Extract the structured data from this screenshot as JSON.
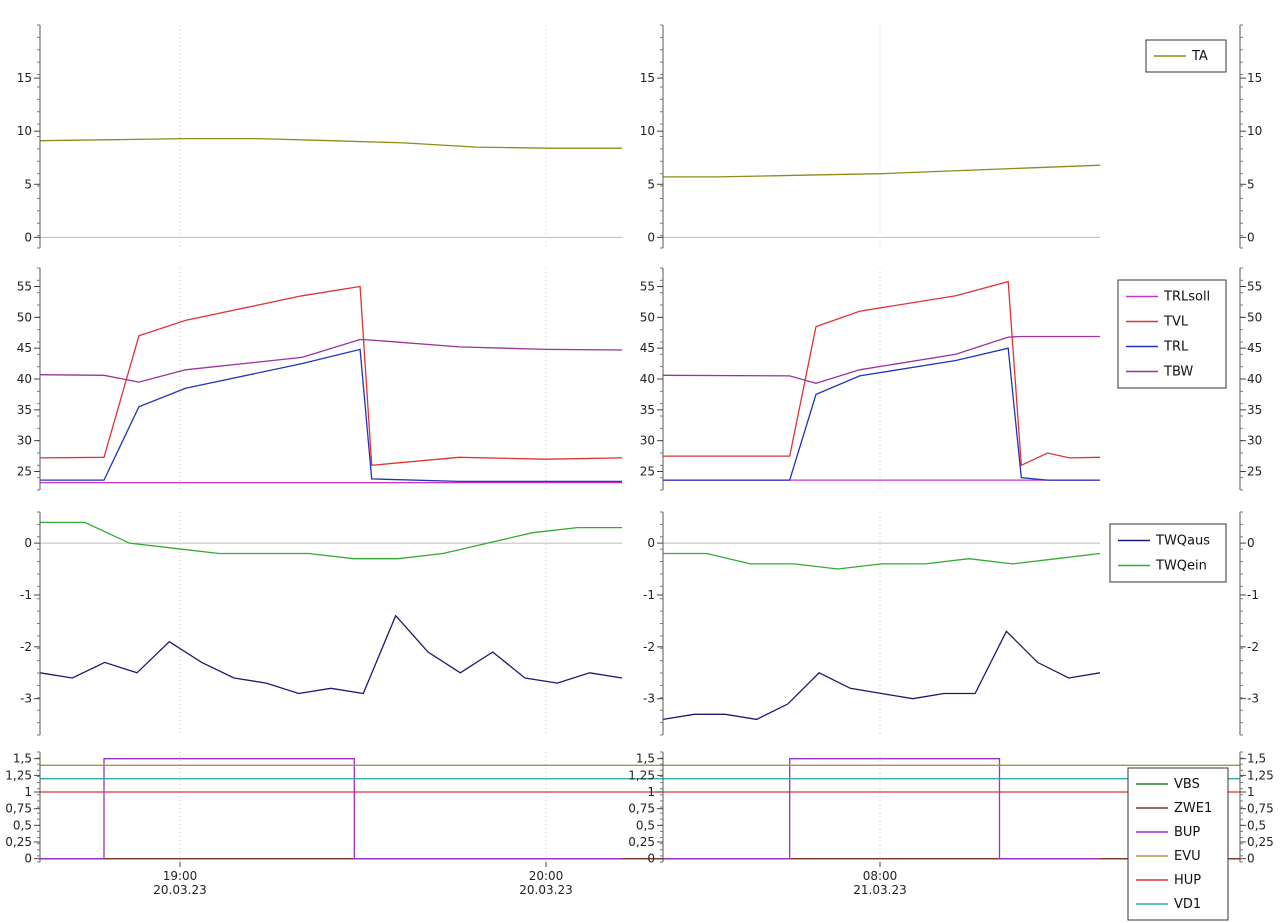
{
  "chart_data": [
    {
      "name": "ta-panel",
      "type": "line",
      "ylim": [
        -1,
        20
      ],
      "yticks": [
        "0",
        "5",
        "10",
        "15"
      ],
      "ytick_values": [
        0,
        5,
        10,
        15
      ],
      "grid": true,
      "legend_position": "top-right",
      "series": [
        {
          "name": "TA",
          "color": "#8c8c1a",
          "x_left": [
            "18:25",
            "18:40",
            "18:55",
            "19:10",
            "19:25",
            "19:40",
            "19:55",
            "20:10",
            "20:15"
          ],
          "y_left": [
            9.1,
            9.2,
            9.3,
            9.3,
            9.1,
            8.9,
            8.5,
            8.4,
            8.4
          ],
          "x_right": [
            "07:10",
            "07:25",
            "07:40",
            "07:55",
            "08:10",
            "08:25",
            "08:40",
            "08:55",
            "09:05"
          ],
          "y_right": [
            5.7,
            5.7,
            5.8,
            5.9,
            6.0,
            6.2,
            6.4,
            6.6,
            6.8
          ]
        }
      ]
    },
    {
      "name": "temperature-panel",
      "type": "line",
      "ylim": [
        22,
        58
      ],
      "yticks": [
        "25",
        "30",
        "35",
        "40",
        "45",
        "50",
        "55"
      ],
      "ytick_values": [
        25,
        30,
        35,
        40,
        45,
        50,
        55
      ],
      "grid": true,
      "legend_position": "top-right",
      "series": [
        {
          "name": "TRLsoll",
          "color": "#cc33cc",
          "y_left": [
            23.2,
            23.2,
            23.2,
            23.2,
            23.2,
            23.2
          ],
          "y_right": [
            23.6,
            23.6,
            23.6,
            23.6,
            23.6,
            23.6
          ]
        },
        {
          "name": "TVL",
          "color": "#dd3333",
          "y_left": [
            27.2,
            27.3,
            47.0,
            49.5,
            53.5,
            55.0,
            26.0,
            27.3,
            27.0,
            27.2
          ],
          "y_right": [
            27.5,
            27.5,
            48.5,
            51.0,
            53.5,
            55.8,
            26.0,
            28.0,
            27.2,
            27.3
          ]
        },
        {
          "name": "TRL",
          "color": "#2233bb",
          "y_left": [
            23.6,
            23.6,
            35.5,
            38.5,
            42.5,
            44.8,
            23.8,
            23.4,
            23.4,
            23.4
          ],
          "y_right": [
            23.6,
            23.6,
            37.5,
            40.5,
            43.0,
            45.0,
            24.0,
            23.6,
            23.6,
            23.6
          ]
        },
        {
          "name": "TBW",
          "color": "#993399",
          "y_left": [
            40.7,
            40.6,
            39.5,
            41.5,
            43.5,
            46.4,
            46.3,
            45.2,
            44.8,
            44.7
          ],
          "y_right": [
            40.6,
            40.5,
            39.3,
            41.5,
            44.0,
            46.8,
            46.9,
            46.9,
            46.9,
            46.9
          ]
        }
      ]
    },
    {
      "name": "twq-panel",
      "type": "line",
      "ylim": [
        -3.7,
        0.6
      ],
      "yticks": [
        "-3",
        "-2",
        "-1",
        "0"
      ],
      "ytick_values": [
        -3,
        -2,
        -1,
        0
      ],
      "grid": true,
      "legend_position": "top-right",
      "series": [
        {
          "name": "TWQaus",
          "color": "#1a1a70",
          "y_left": [
            -2.5,
            -2.6,
            -2.3,
            -2.5,
            -1.9,
            -2.3,
            -2.6,
            -2.7,
            -2.9,
            -2.8,
            -2.9,
            -1.4,
            -2.1,
            -2.5,
            -2.1,
            -2.6,
            -2.7,
            -2.5,
            -2.6
          ],
          "y_right": [
            -3.4,
            -3.3,
            -3.3,
            -3.4,
            -3.1,
            -2.5,
            -2.8,
            -2.9,
            -3.0,
            -2.9,
            -2.9,
            -1.7,
            -2.3,
            -2.6,
            -2.5
          ]
        },
        {
          "name": "TWQein",
          "color": "#33aa33",
          "y_left": [
            0.4,
            0.4,
            0.0,
            -0.1,
            -0.2,
            -0.2,
            -0.2,
            -0.3,
            -0.3,
            -0.2,
            0.0,
            0.2,
            0.3,
            0.3
          ],
          "y_right": [
            -0.2,
            -0.2,
            -0.4,
            -0.4,
            -0.5,
            -0.4,
            -0.4,
            -0.3,
            -0.4,
            -0.3,
            -0.2
          ]
        }
      ]
    },
    {
      "name": "status-panel",
      "type": "line",
      "ylim": [
        -0.05,
        1.6
      ],
      "yticks": [
        "0",
        "0,25",
        "0,5",
        "0,75",
        "1",
        "1,25",
        "1,5"
      ],
      "ytick_values": [
        0,
        0.25,
        0.5,
        0.75,
        1,
        1.25,
        1.5
      ],
      "grid": false,
      "legend_position": "bottom-right",
      "xticks_left": [
        {
          "time": "19:00",
          "date": "20.03.23"
        },
        {
          "time": "20:00",
          "date": "20.03.23"
        }
      ],
      "xticks_right": [
        {
          "time": "08:00",
          "date": "21.03.23"
        }
      ],
      "series": [
        {
          "name": "VBS",
          "color": "#2a7a2a",
          "y": [
            0
          ]
        },
        {
          "name": "ZWE1",
          "color": "#7a3a2a",
          "y": [
            0
          ]
        },
        {
          "name": "BUP",
          "color": "#9933cc",
          "y_left": [
            0,
            0,
            1.5,
            1.5,
            0,
            0
          ],
          "y_right": [
            0,
            0,
            1.5,
            1.5,
            0,
            0
          ]
        },
        {
          "name": "EVU",
          "color": "#a09a40",
          "y": [
            1.4
          ]
        },
        {
          "name": "HUP",
          "color": "#dd3333",
          "y": [
            1.0
          ]
        },
        {
          "name": "VD1",
          "color": "#33aaaa",
          "y": [
            1.2
          ]
        }
      ]
    }
  ]
}
